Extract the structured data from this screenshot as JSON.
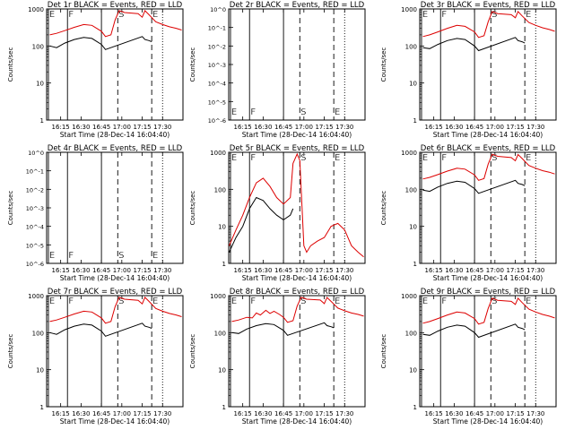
{
  "figure": {
    "background": "#ffffff",
    "colors": {
      "events": "#000000",
      "lld": "#dd0000",
      "axes": "#000000"
    },
    "ylabel": "Counts/sec",
    "xlabel": "Start Time (28-Dec-14 16:04:40)",
    "x_tick_labels": [
      "16:15",
      "16:30",
      "16:45",
      "17:00",
      "17:15",
      "17:30"
    ],
    "y_tick_labels": [
      "1",
      "10",
      "100",
      "1000"
    ],
    "y_tick_labels_small": [
      "10^0",
      "10^-1",
      "10^-2",
      "10^-3",
      "10^-4",
      "10^-5",
      "10^-6"
    ],
    "interval_markers": [
      "E",
      "F",
      "S",
      "E"
    ]
  },
  "chart_data": [
    {
      "panel": 1,
      "type": "line",
      "title": "Det 1r BLACK = Events, RED = LLD",
      "xlim": [
        "16:04:40",
        "17:45"
      ],
      "ylim": [
        1,
        1000
      ],
      "yscale": "log",
      "markers": [
        {
          "label": "E",
          "x": "16:04:40"
        },
        {
          "label": "F",
          "x": "16:20"
        },
        {
          "label": "S",
          "x": "16:57"
        },
        {
          "label": "E",
          "x": "17:22"
        }
      ],
      "series": [
        {
          "name": "LLD",
          "color": "red",
          "x": [
            "16:07",
            "16:12",
            "16:18",
            "16:25",
            "16:32",
            "16:38",
            "16:45",
            "16:48",
            "16:52",
            "16:55",
            "16:58",
            "17:02",
            "17:12",
            "17:15",
            "17:17",
            "17:20",
            "17:25",
            "17:30",
            "17:35",
            "17:40",
            "17:44"
          ],
          "y": [
            200,
            220,
            260,
            320,
            380,
            360,
            250,
            180,
            200,
            500,
            900,
            800,
            750,
            600,
            900,
            700,
            450,
            380,
            330,
            300,
            270
          ]
        },
        {
          "name": "Events",
          "color": "black",
          "x": [
            "16:07",
            "16:12",
            "16:18",
            "16:25",
            "16:32",
            "16:38",
            "16:45",
            "16:48",
            "17:15",
            "17:17",
            "17:20",
            "17:22"
          ],
          "y": [
            100,
            90,
            120,
            150,
            170,
            160,
            110,
            80,
            180,
            150,
            140,
            130
          ]
        }
      ]
    },
    {
      "panel": 2,
      "type": "line",
      "title": "Det 2r BLACK = Events, RED = LLD",
      "xlim": [
        "16:04:40",
        "17:45"
      ],
      "ylim": [
        1e-06,
        1
      ],
      "yscale": "log",
      "markers": [
        {
          "label": "E",
          "x": "16:04:40"
        },
        {
          "label": "F",
          "x": "16:20"
        },
        {
          "label": "S",
          "x": "16:57"
        },
        {
          "label": "E",
          "x": "17:22"
        }
      ],
      "series": []
    },
    {
      "panel": 3,
      "type": "line",
      "title": "Det 3r BLACK = Events, RED = LLD",
      "xlim": [
        "16:04:40",
        "17:45"
      ],
      "ylim": [
        1,
        1000
      ],
      "yscale": "log",
      "markers": [
        {
          "label": "E",
          "x": "16:04:40"
        },
        {
          "label": "F",
          "x": "16:20"
        },
        {
          "label": "S",
          "x": "16:57"
        },
        {
          "label": "E",
          "x": "17:22"
        }
      ],
      "series": [
        {
          "name": "LLD",
          "color": "red",
          "x": [
            "16:07",
            "16:12",
            "16:18",
            "16:25",
            "16:32",
            "16:38",
            "16:45",
            "16:48",
            "16:52",
            "16:55",
            "16:58",
            "17:02",
            "17:12",
            "17:15",
            "17:17",
            "17:20",
            "17:25",
            "17:30",
            "17:35",
            "17:40",
            "17:44"
          ],
          "y": [
            180,
            200,
            240,
            300,
            360,
            340,
            240,
            170,
            190,
            450,
            850,
            750,
            700,
            580,
            850,
            650,
            430,
            360,
            310,
            280,
            250
          ]
        },
        {
          "name": "Events",
          "color": "black",
          "x": [
            "16:07",
            "16:12",
            "16:18",
            "16:25",
            "16:32",
            "16:38",
            "16:45",
            "16:48",
            "17:15",
            "17:17",
            "17:20",
            "17:22"
          ],
          "y": [
            90,
            85,
            110,
            140,
            160,
            150,
            100,
            75,
            170,
            140,
            130,
            120
          ]
        }
      ]
    },
    {
      "panel": 4,
      "type": "line",
      "title": "Det 4r BLACK = Events, RED = LLD",
      "xlim": [
        "16:04:40",
        "17:45"
      ],
      "ylim": [
        1e-06,
        1
      ],
      "yscale": "log",
      "markers": [
        {
          "label": "E",
          "x": "16:04:40"
        },
        {
          "label": "F",
          "x": "16:20"
        },
        {
          "label": "S",
          "x": "16:57"
        },
        {
          "label": "E",
          "x": "17:22"
        }
      ],
      "series": []
    },
    {
      "panel": 5,
      "type": "line",
      "title": "Det 5r BLACK = Events, RED = LLD",
      "xlim": [
        "16:04:40",
        "17:45"
      ],
      "ylim": [
        1,
        1000
      ],
      "yscale": "log",
      "markers": [
        {
          "label": "E",
          "x": "16:04:40"
        },
        {
          "label": "F",
          "x": "16:20"
        },
        {
          "label": "S",
          "x": "16:57"
        },
        {
          "label": "E",
          "x": "17:22"
        }
      ],
      "series": [
        {
          "name": "LLD",
          "color": "red",
          "x": [
            "16:05",
            "16:10",
            "16:15",
            "16:20",
            "16:25",
            "16:30",
            "16:35",
            "16:40",
            "16:45",
            "16:50",
            "16:52",
            "16:55",
            "16:57",
            "17:00",
            "17:02",
            "17:05",
            "17:10",
            "17:15",
            "17:20",
            "17:25",
            "17:30",
            "17:35",
            "17:40",
            "17:44"
          ],
          "y": [
            3,
            8,
            20,
            60,
            150,
            200,
            120,
            60,
            40,
            60,
            500,
            900,
            600,
            3,
            2,
            3,
            4,
            5,
            10,
            12,
            8,
            3,
            2,
            1.5
          ]
        },
        {
          "name": "Events",
          "color": "black",
          "x": [
            "16:05",
            "16:10",
            "16:15",
            "16:20",
            "16:25",
            "16:30",
            "16:35",
            "16:40",
            "16:45",
            "16:50",
            "16:52"
          ],
          "y": [
            2,
            5,
            10,
            30,
            60,
            50,
            30,
            20,
            15,
            20,
            30
          ]
        }
      ]
    },
    {
      "panel": 6,
      "type": "line",
      "title": "Det 6r BLACK = Events, RED = LLD",
      "xlim": [
        "16:04:40",
        "17:45"
      ],
      "ylim": [
        1,
        1000
      ],
      "yscale": "log",
      "markers": [
        {
          "label": "E",
          "x": "16:04:40"
        },
        {
          "label": "F",
          "x": "16:20"
        },
        {
          "label": "S",
          "x": "16:57"
        },
        {
          "label": "E",
          "x": "17:22"
        }
      ],
      "series": [
        {
          "name": "LLD",
          "color": "red",
          "x": [
            "16:07",
            "16:12",
            "16:18",
            "16:25",
            "16:32",
            "16:38",
            "16:45",
            "16:48",
            "16:52",
            "16:55",
            "16:58",
            "17:02",
            "17:12",
            "17:15",
            "17:17",
            "17:20",
            "17:25",
            "17:30",
            "17:35",
            "17:40",
            "17:44"
          ],
          "y": [
            190,
            210,
            250,
            310,
            370,
            350,
            245,
            175,
            195,
            480,
            880,
            780,
            720,
            590,
            870,
            680,
            440,
            370,
            320,
            290,
            260
          ]
        },
        {
          "name": "Events",
          "color": "black",
          "x": [
            "16:07",
            "16:12",
            "16:18",
            "16:25",
            "16:32",
            "16:38",
            "16:45",
            "16:48",
            "17:15",
            "17:17",
            "17:20",
            "17:22"
          ],
          "y": [
            95,
            88,
            115,
            145,
            165,
            155,
            105,
            78,
            175,
            145,
            135,
            125
          ]
        }
      ]
    },
    {
      "panel": 7,
      "type": "line",
      "title": "Det 7r BLACK = Events, RED = LLD",
      "xlim": [
        "16:04:40",
        "17:45"
      ],
      "ylim": [
        1,
        1000
      ],
      "yscale": "log",
      "markers": [
        {
          "label": "E",
          "x": "16:04:40"
        },
        {
          "label": "F",
          "x": "16:20"
        },
        {
          "label": "S",
          "x": "16:57"
        },
        {
          "label": "E",
          "x": "17:22"
        }
      ],
      "series": [
        {
          "name": "LLD",
          "color": "red",
          "x": [
            "16:07",
            "16:12",
            "16:18",
            "16:25",
            "16:32",
            "16:38",
            "16:45",
            "16:48",
            "16:52",
            "16:55",
            "16:58",
            "17:02",
            "17:12",
            "17:15",
            "17:17",
            "17:20",
            "17:25",
            "17:30",
            "17:35",
            "17:40",
            "17:44"
          ],
          "y": [
            200,
            220,
            260,
            320,
            380,
            360,
            250,
            180,
            200,
            500,
            900,
            800,
            750,
            600,
            900,
            700,
            450,
            380,
            330,
            300,
            270
          ]
        },
        {
          "name": "Events",
          "color": "black",
          "x": [
            "16:07",
            "16:12",
            "16:18",
            "16:25",
            "16:32",
            "16:38",
            "16:45",
            "16:48",
            "17:15",
            "17:17",
            "17:20",
            "17:22"
          ],
          "y": [
            100,
            90,
            120,
            150,
            170,
            160,
            110,
            80,
            180,
            150,
            140,
            130
          ]
        }
      ]
    },
    {
      "panel": 8,
      "type": "line",
      "title": "Det 8r BLACK = Events, RED = LLD",
      "xlim": [
        "16:04:40",
        "17:45"
      ],
      "ylim": [
        1,
        1000
      ],
      "yscale": "log",
      "markers": [
        {
          "label": "E",
          "x": "16:04:40"
        },
        {
          "label": "F",
          "x": "16:20"
        },
        {
          "label": "S",
          "x": "16:57"
        },
        {
          "label": "E",
          "x": "17:22"
        }
      ],
      "series": [
        {
          "name": "LLD",
          "color": "red",
          "x": [
            "16:07",
            "16:12",
            "16:18",
            "16:22",
            "16:25",
            "16:28",
            "16:32",
            "16:35",
            "16:38",
            "16:42",
            "16:45",
            "16:48",
            "16:52",
            "16:55",
            "16:58",
            "17:02",
            "17:12",
            "17:15",
            "17:17",
            "17:20",
            "17:25",
            "17:30",
            "17:35",
            "17:40",
            "17:44"
          ],
          "y": [
            200,
            220,
            260,
            250,
            340,
            300,
            400,
            330,
            380,
            310,
            260,
            190,
            210,
            520,
            900,
            800,
            760,
            610,
            890,
            700,
            460,
            390,
            340,
            310,
            280
          ]
        },
        {
          "name": "Events",
          "color": "black",
          "x": [
            "16:07",
            "16:12",
            "16:18",
            "16:25",
            "16:32",
            "16:38",
            "16:45",
            "16:48",
            "17:15",
            "17:17",
            "17:20",
            "17:22"
          ],
          "y": [
            100,
            95,
            125,
            155,
            175,
            165,
            115,
            85,
            185,
            155,
            145,
            135
          ]
        }
      ]
    },
    {
      "panel": 9,
      "type": "line",
      "title": "Det 9r BLACK = Events, RED = LLD",
      "xlim": [
        "16:04:40",
        "17:45"
      ],
      "ylim": [
        1,
        1000
      ],
      "yscale": "log",
      "markers": [
        {
          "label": "E",
          "x": "16:04:40"
        },
        {
          "label": "F",
          "x": "16:20"
        },
        {
          "label": "S",
          "x": "16:57"
        },
        {
          "label": "E",
          "x": "17:22"
        }
      ],
      "series": [
        {
          "name": "LLD",
          "color": "red",
          "x": [
            "16:07",
            "16:12",
            "16:18",
            "16:25",
            "16:32",
            "16:38",
            "16:45",
            "16:48",
            "16:52",
            "16:55",
            "16:58",
            "17:02",
            "17:12",
            "17:15",
            "17:17",
            "17:20",
            "17:25",
            "17:30",
            "17:35",
            "17:40",
            "17:44"
          ],
          "y": [
            180,
            200,
            240,
            300,
            360,
            340,
            240,
            170,
            190,
            450,
            850,
            750,
            700,
            580,
            850,
            650,
            430,
            360,
            310,
            280,
            250
          ]
        },
        {
          "name": "Events",
          "color": "black",
          "x": [
            "16:07",
            "16:12",
            "16:18",
            "16:25",
            "16:32",
            "16:38",
            "16:45",
            "16:48",
            "17:15",
            "17:17",
            "17:20",
            "17:22"
          ],
          "y": [
            90,
            85,
            110,
            140,
            160,
            150,
            100,
            75,
            170,
            140,
            130,
            120
          ]
        }
      ]
    }
  ]
}
